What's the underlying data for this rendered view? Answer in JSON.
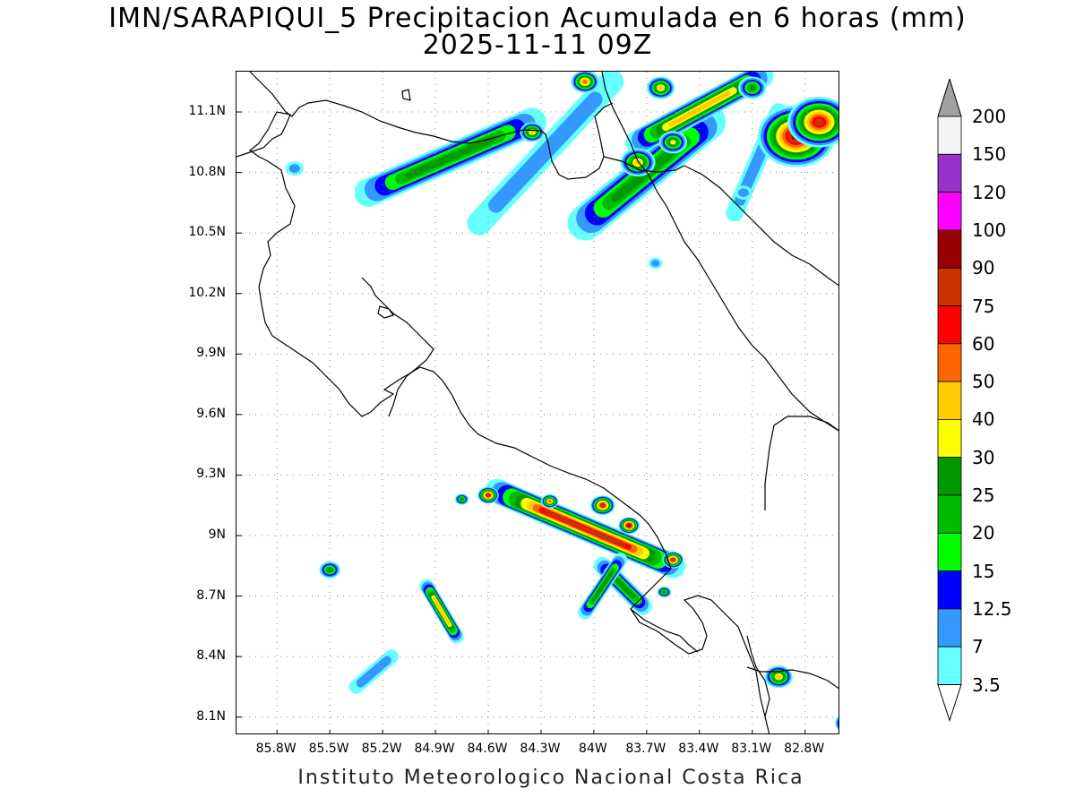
{
  "title_line1": "IMN/SARAPIQUI_5 Precipitacion Acumulada en 6 horas (mm)",
  "title_line2": "2025-11-11 09Z",
  "footer": "Instituto Meteorologico Nacional Costa Rica",
  "latitude_labels": [
    "11.1N",
    "10.8N",
    "10.5N",
    "10.2N",
    "9.9N",
    "9.6N",
    "9.3N",
    "9N",
    "8.7N",
    "8.4N",
    "8.1N"
  ],
  "longitude_labels": [
    "85.8W",
    "85.5W",
    "85.2W",
    "84.9W",
    "84.6W",
    "84.3W",
    "84W",
    "83.7W",
    "83.4W",
    "83.1W",
    "82.8W"
  ],
  "map_extent": {
    "lon_min": -86.03,
    "lon_max": -82.6,
    "lat_min": 8.01,
    "lat_max": 11.3
  },
  "colorbar": {
    "labels": [
      "200",
      "150",
      "120",
      "100",
      "90",
      "75",
      "60",
      "50",
      "40",
      "30",
      "25",
      "20",
      "15",
      "12.5",
      "7",
      "3.5"
    ],
    "colors": [
      "#f4f4f4",
      "#9933cc",
      "#ff00ff",
      "#990000",
      "#cc3300",
      "#ff0000",
      "#ff6600",
      "#ffcc00",
      "#ffff00",
      "#009900",
      "#00bb00",
      "#00ff00",
      "#0000ff",
      "#3399ff",
      "#66ffff"
    ],
    "over_color": "#a0a0a0",
    "under_color": "#ffffff"
  },
  "precip_bands": [
    {
      "name": "nicoya-north",
      "lon1": -85.28,
      "lat1": 10.7,
      "lon2": -84.35,
      "lat2": 11.05,
      "width": 0.08,
      "peak": 25
    },
    {
      "name": "ncoast-a",
      "lon1": -84.65,
      "lat1": 10.55,
      "lon2": -83.9,
      "lat2": 11.25,
      "width": 0.07,
      "peak": 12
    },
    {
      "name": "ncoast-b",
      "lon1": -84.05,
      "lat1": 10.55,
      "lon2": -83.35,
      "lat2": 11.05,
      "width": 0.1,
      "peak": 25
    },
    {
      "name": "ncoast-c",
      "lon1": -83.75,
      "lat1": 10.95,
      "lon2": -83.05,
      "lat2": 11.28,
      "width": 0.07,
      "peak": 40
    },
    {
      "name": "caribbean-ne",
      "lon1": -83.2,
      "lat1": 10.6,
      "lon2": -82.95,
      "lat2": 11.1,
      "width": 0.05,
      "peak": 12
    },
    {
      "name": "south-pacific",
      "lon1": -84.55,
      "lat1": 9.22,
      "lon2": -83.55,
      "lat2": 8.85,
      "width": 0.07,
      "peak": 75
    },
    {
      "name": "osa-arm",
      "lon1": -83.95,
      "lat1": 8.85,
      "lon2": -83.72,
      "lat2": 8.65,
      "width": 0.05,
      "peak": 25
    },
    {
      "name": "offshore-1",
      "lon1": -84.95,
      "lat1": 8.75,
      "lon2": -84.78,
      "lat2": 8.5,
      "width": 0.04,
      "peak": 40
    },
    {
      "name": "offshore-2",
      "lon1": -84.05,
      "lat1": 8.62,
      "lon2": -83.85,
      "lat2": 8.88,
      "width": 0.04,
      "peak": 25
    },
    {
      "name": "offshore-3",
      "lon1": -85.35,
      "lat1": 8.25,
      "lon2": -85.15,
      "lat2": 8.4,
      "width": 0.04,
      "peak": 12
    }
  ],
  "precip_cells": [
    {
      "lon": -82.85,
      "lat": 10.98,
      "r": 0.22,
      "peak": 90
    },
    {
      "lon": -82.72,
      "lat": 11.05,
      "r": 0.18,
      "peak": 75
    },
    {
      "lon": -83.62,
      "lat": 11.22,
      "r": 0.08,
      "peak": 40
    },
    {
      "lon": -84.05,
      "lat": 11.25,
      "r": 0.08,
      "peak": 50
    },
    {
      "lon": -83.1,
      "lat": 11.22,
      "r": 0.08,
      "peak": 25
    },
    {
      "lon": -84.35,
      "lat": 11.0,
      "r": 0.07,
      "peak": 40
    },
    {
      "lon": -83.75,
      "lat": 10.85,
      "r": 0.1,
      "peak": 40
    },
    {
      "lon": -83.55,
      "lat": 10.95,
      "r": 0.08,
      "peak": 30
    },
    {
      "lon": -84.6,
      "lat": 9.2,
      "r": 0.06,
      "peak": 75
    },
    {
      "lon": -83.95,
      "lat": 9.15,
      "r": 0.07,
      "peak": 75
    },
    {
      "lon": -83.8,
      "lat": 9.05,
      "r": 0.06,
      "peak": 90
    },
    {
      "lon": -83.55,
      "lat": 8.88,
      "r": 0.06,
      "peak": 75
    },
    {
      "lon": -84.25,
      "lat": 9.17,
      "r": 0.05,
      "peak": 50
    },
    {
      "lon": -82.95,
      "lat": 8.3,
      "r": 0.08,
      "peak": 40
    },
    {
      "lon": -82.55,
      "lat": 8.07,
      "r": 0.08,
      "peak": 75
    },
    {
      "lon": -85.5,
      "lat": 8.83,
      "r": 0.06,
      "peak": 25
    },
    {
      "lon": -84.75,
      "lat": 9.18,
      "r": 0.04,
      "peak": 25
    },
    {
      "lon": -83.6,
      "lat": 8.72,
      "r": 0.04,
      "peak": 25
    },
    {
      "lon": -83.65,
      "lat": 10.35,
      "r": 0.04,
      "peak": 12
    },
    {
      "lon": -85.7,
      "lat": 10.82,
      "r": 0.05,
      "peak": 7
    },
    {
      "lon": -83.15,
      "lat": 10.7,
      "r": 0.05,
      "peak": 12
    }
  ]
}
